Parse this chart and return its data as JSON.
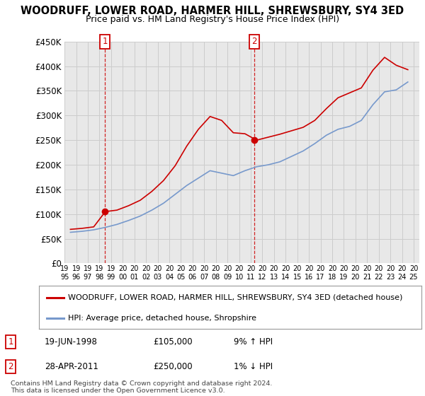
{
  "title": "WOODRUFF, LOWER ROAD, HARMER HILL, SHREWSBURY, SY4 3ED",
  "subtitle": "Price paid vs. HM Land Registry's House Price Index (HPI)",
  "ylim": [
    0,
    450000
  ],
  "yticks": [
    0,
    50000,
    100000,
    150000,
    200000,
    250000,
    300000,
    350000,
    400000,
    450000
  ],
  "background_color": "#ffffff",
  "grid_color": "#cccccc",
  "plot_bg": "#e8e8e8",
  "legend_label_red": "WOODRUFF, LOWER ROAD, HARMER HILL, SHREWSBURY, SY4 3ED (detached house)",
  "legend_label_blue": "HPI: Average price, detached house, Shropshire",
  "sale1_date": "19-JUN-1998",
  "sale1_price": "£105,000",
  "sale1_hpi": "9% ↑ HPI",
  "sale2_date": "28-APR-2011",
  "sale2_price": "£250,000",
  "sale2_hpi": "1% ↓ HPI",
  "footer": "Contains HM Land Registry data © Crown copyright and database right 2024.\nThis data is licensed under the Open Government Licence v3.0.",
  "red_color": "#cc0000",
  "blue_color": "#7799cc",
  "marker1_year": 1998.47,
  "marker2_year": 2011.32,
  "marker1_y": 105000,
  "marker2_y": 250000,
  "hpi_years": [
    1995.5,
    1996.5,
    1997.5,
    1998.5,
    1999.5,
    2000.5,
    2001.5,
    2002.5,
    2003.5,
    2004.5,
    2005.5,
    2006.5,
    2007.5,
    2008.5,
    2009.5,
    2010.5,
    2011.5,
    2012.5,
    2013.5,
    2014.5,
    2015.5,
    2016.5,
    2017.5,
    2018.5,
    2019.5,
    2020.5,
    2021.5,
    2022.5,
    2023.5,
    2024.5
  ],
  "hpi_values": [
    63000,
    65000,
    68000,
    73000,
    79000,
    87000,
    96000,
    108000,
    122000,
    140000,
    158000,
    173000,
    188000,
    183000,
    178000,
    188000,
    196000,
    200000,
    206000,
    217000,
    228000,
    243000,
    260000,
    272000,
    278000,
    290000,
    322000,
    348000,
    352000,
    368000
  ],
  "red_years": [
    1995.5,
    1996.5,
    1997.5,
    1998.5,
    1999.5,
    2000.5,
    2001.5,
    2002.5,
    2003.5,
    2004.5,
    2005.5,
    2006.5,
    2007.5,
    2008.5,
    2009.5,
    2010.5,
    2011.5,
    2012.5,
    2013.5,
    2014.5,
    2015.5,
    2016.5,
    2017.5,
    2018.5,
    2019.5,
    2020.5,
    2021.5,
    2022.5,
    2023.5,
    2024.5
  ],
  "red_values": [
    69000,
    71000,
    74000,
    105000,
    108000,
    117000,
    128000,
    146000,
    168000,
    198000,
    238000,
    272000,
    298000,
    290000,
    265000,
    263000,
    250000,
    256000,
    262000,
    269000,
    276000,
    290000,
    314000,
    336000,
    346000,
    356000,
    392000,
    418000,
    402000,
    393000
  ],
  "xlim_left": 1995,
  "xlim_right": 2025.5,
  "xtick_years": [
    1995,
    1996,
    1997,
    1998,
    1999,
    2000,
    2001,
    2002,
    2003,
    2004,
    2005,
    2006,
    2007,
    2008,
    2009,
    2010,
    2011,
    2012,
    2013,
    2014,
    2015,
    2016,
    2017,
    2018,
    2019,
    2020,
    2021,
    2022,
    2023,
    2024,
    2025
  ]
}
